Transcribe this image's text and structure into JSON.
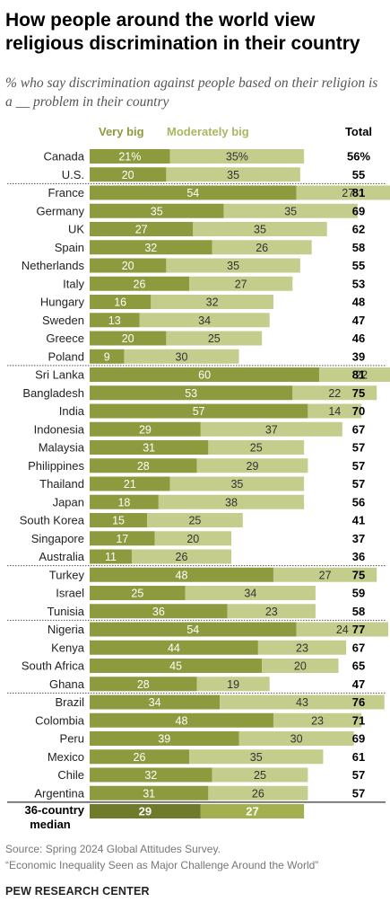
{
  "title": "How people around the world view religious discrimination in their country",
  "subtitle": "% who say discrimination against people based on their religion is a __ problem in their country",
  "source": "Source: Spring 2024 Global Attitudes Survey.",
  "report": "“Economic Inequality Seen as Major Challenge Around the World”",
  "organization": "PEW RESEARCH CENTER",
  "colors": {
    "very_big": "#8d9b3e",
    "moderately_big": "#c5cd8c",
    "median_very_big": "#6f7a2a",
    "median_moderately_big": "#a4b04f"
  },
  "chart_data": {
    "type": "bar",
    "stacked": true,
    "orientation": "horizontal",
    "legend_position": "top",
    "xlim": [
      0,
      100
    ],
    "series": [
      {
        "name": "Very big",
        "key": "very_big"
      },
      {
        "name": "Moderately big",
        "key": "moderately_big"
      }
    ],
    "total_label": "Total",
    "groups": [
      {
        "rows": [
          {
            "country": "Canada",
            "very_big": 21,
            "moderately_big": 35,
            "total": 56,
            "very_big_label": "21%",
            "moderately_big_label": "35%",
            "total_label": "56%"
          },
          {
            "country": "U.S.",
            "very_big": 20,
            "moderately_big": 35,
            "total": 55
          }
        ]
      },
      {
        "rows": [
          {
            "country": "France",
            "very_big": 54,
            "moderately_big": 27,
            "total": 81
          },
          {
            "country": "Germany",
            "very_big": 35,
            "moderately_big": 35,
            "total": 69
          },
          {
            "country": "UK",
            "very_big": 27,
            "moderately_big": 35,
            "total": 62
          },
          {
            "country": "Spain",
            "very_big": 32,
            "moderately_big": 26,
            "total": 58
          },
          {
            "country": "Netherlands",
            "very_big": 20,
            "moderately_big": 35,
            "total": 55
          },
          {
            "country": "Italy",
            "very_big": 26,
            "moderately_big": 27,
            "total": 53
          },
          {
            "country": "Hungary",
            "very_big": 16,
            "moderately_big": 32,
            "total": 48
          },
          {
            "country": "Sweden",
            "very_big": 13,
            "moderately_big": 34,
            "total": 47
          },
          {
            "country": "Greece",
            "very_big": 20,
            "moderately_big": 25,
            "total": 46
          },
          {
            "country": "Poland",
            "very_big": 9,
            "moderately_big": 30,
            "total": 39
          }
        ]
      },
      {
        "rows": [
          {
            "country": "Sri Lanka",
            "very_big": 60,
            "moderately_big": 22,
            "total": 81
          },
          {
            "country": "Bangladesh",
            "very_big": 53,
            "moderately_big": 22,
            "total": 75
          },
          {
            "country": "India",
            "very_big": 57,
            "moderately_big": 14,
            "total": 70
          },
          {
            "country": "Indonesia",
            "very_big": 29,
            "moderately_big": 37,
            "total": 67
          },
          {
            "country": "Malaysia",
            "very_big": 31,
            "moderately_big": 25,
            "total": 57
          },
          {
            "country": "Philippines",
            "very_big": 28,
            "moderately_big": 29,
            "total": 57
          },
          {
            "country": "Thailand",
            "very_big": 21,
            "moderately_big": 35,
            "total": 57
          },
          {
            "country": "Japan",
            "very_big": 18,
            "moderately_big": 38,
            "total": 56
          },
          {
            "country": "South Korea",
            "very_big": 15,
            "moderately_big": 25,
            "total": 41
          },
          {
            "country": "Singapore",
            "very_big": 17,
            "moderately_big": 20,
            "total": 37
          },
          {
            "country": "Australia",
            "very_big": 11,
            "moderately_big": 26,
            "total": 36
          }
        ]
      },
      {
        "rows": [
          {
            "country": "Turkey",
            "very_big": 48,
            "moderately_big": 27,
            "total": 75
          },
          {
            "country": "Israel",
            "very_big": 25,
            "moderately_big": 34,
            "total": 59
          },
          {
            "country": "Tunisia",
            "very_big": 36,
            "moderately_big": 23,
            "total": 58
          }
        ]
      },
      {
        "rows": [
          {
            "country": "Nigeria",
            "very_big": 54,
            "moderately_big": 24,
            "total": 77
          },
          {
            "country": "Kenya",
            "very_big": 44,
            "moderately_big": 23,
            "total": 67
          },
          {
            "country": "South Africa",
            "very_big": 45,
            "moderately_big": 20,
            "total": 65
          },
          {
            "country": "Ghana",
            "very_big": 28,
            "moderately_big": 19,
            "total": 47
          }
        ]
      },
      {
        "rows": [
          {
            "country": "Brazil",
            "very_big": 34,
            "moderately_big": 43,
            "total": 76
          },
          {
            "country": "Colombia",
            "very_big": 48,
            "moderately_big": 23,
            "total": 71
          },
          {
            "country": "Peru",
            "very_big": 39,
            "moderately_big": 30,
            "total": 69
          },
          {
            "country": "Mexico",
            "very_big": 26,
            "moderately_big": 35,
            "total": 61
          },
          {
            "country": "Chile",
            "very_big": 32,
            "moderately_big": 25,
            "total": 57
          },
          {
            "country": "Argentina",
            "very_big": 31,
            "moderately_big": 26,
            "total": 57
          }
        ]
      }
    ],
    "median": {
      "label_lines": [
        "36-country",
        "median"
      ],
      "very_big": 29,
      "moderately_big": 27
    }
  }
}
